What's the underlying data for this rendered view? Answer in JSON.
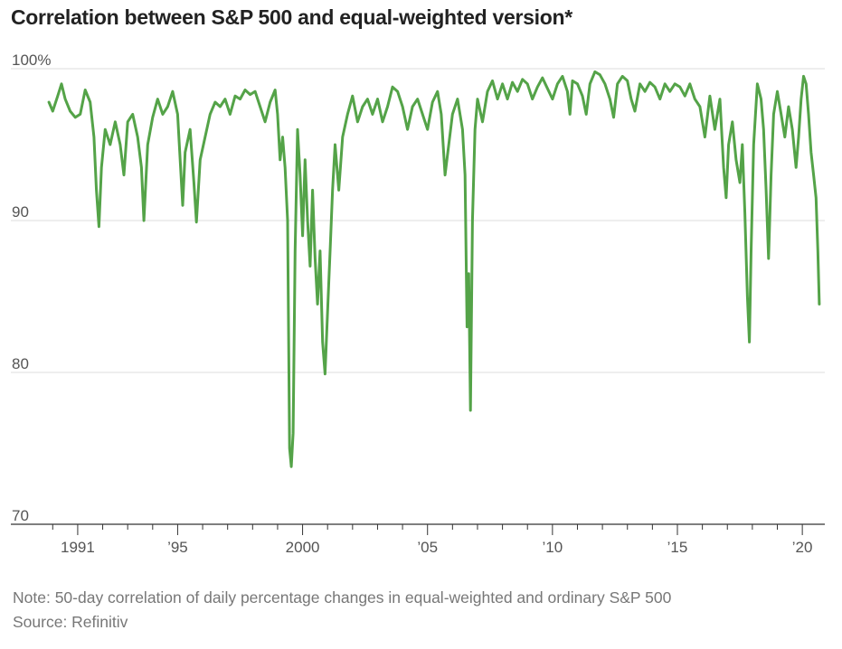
{
  "title": "Correlation between S&P 500 and equal-weighted version*",
  "note": "Note: 50-day correlation of daily percentage changes in equal-weighted and ordinary S&P 500",
  "source": "Source: Refinitiv",
  "colors": {
    "line": "#54a348",
    "grid": "#dddddd",
    "axis": "#333333"
  },
  "chart_data": {
    "type": "line",
    "title": "Correlation between S&P 500 and equal-weighted version*",
    "xlabel": "",
    "ylabel": "",
    "ylim": [
      70,
      100
    ],
    "xlim": [
      1989.7,
      2020.9
    ],
    "grid": true,
    "y_ticks": [
      {
        "value": 100,
        "label": "100%"
      },
      {
        "value": 90,
        "label": "90"
      },
      {
        "value": 80,
        "label": "80"
      },
      {
        "value": 70,
        "label": "70"
      }
    ],
    "x_ticks_labeled": [
      {
        "value": 1991,
        "label": "1991"
      },
      {
        "value": 1995,
        "label": "’95"
      },
      {
        "value": 2000,
        "label": "2000"
      },
      {
        "value": 2005,
        "label": "’05"
      },
      {
        "value": 2010,
        "label": "’10"
      },
      {
        "value": 2015,
        "label": "’15"
      },
      {
        "value": 2020,
        "label": "’20"
      }
    ],
    "x_ticks_minor": [
      1990,
      1992,
      1993,
      1994,
      1996,
      1997,
      1998,
      1999,
      2001,
      2002,
      2003,
      2004,
      2006,
      2007,
      2008,
      2009,
      2011,
      2012,
      2013,
      2014,
      2016,
      2017,
      2018,
      2019
    ],
    "series": [
      {
        "points": [
          [
            1989.85,
            97.8
          ],
          [
            1990.0,
            97.2
          ],
          [
            1990.2,
            98.2
          ],
          [
            1990.35,
            99.0
          ],
          [
            1990.5,
            98.0
          ],
          [
            1990.7,
            97.2
          ],
          [
            1990.9,
            96.8
          ],
          [
            1991.1,
            97.0
          ],
          [
            1991.3,
            98.6
          ],
          [
            1991.5,
            97.8
          ],
          [
            1991.65,
            95.5
          ],
          [
            1991.75,
            92.0
          ],
          [
            1991.85,
            89.6
          ],
          [
            1991.95,
            93.5
          ],
          [
            1992.1,
            96.0
          ],
          [
            1992.3,
            95.0
          ],
          [
            1992.5,
            96.5
          ],
          [
            1992.7,
            95.0
          ],
          [
            1992.85,
            93.0
          ],
          [
            1993.0,
            96.5
          ],
          [
            1993.2,
            97.0
          ],
          [
            1993.4,
            95.5
          ],
          [
            1993.55,
            93.5
          ],
          [
            1993.65,
            90.0
          ],
          [
            1993.8,
            95.0
          ],
          [
            1994.0,
            96.8
          ],
          [
            1994.2,
            98.0
          ],
          [
            1994.4,
            97.0
          ],
          [
            1994.6,
            97.5
          ],
          [
            1994.8,
            98.5
          ],
          [
            1995.0,
            97.0
          ],
          [
            1995.1,
            94.0
          ],
          [
            1995.2,
            91.0
          ],
          [
            1995.3,
            94.5
          ],
          [
            1995.5,
            96.0
          ],
          [
            1995.65,
            92.5
          ],
          [
            1995.75,
            89.9
          ],
          [
            1995.9,
            94.0
          ],
          [
            1996.1,
            95.5
          ],
          [
            1996.3,
            97.0
          ],
          [
            1996.5,
            97.8
          ],
          [
            1996.7,
            97.5
          ],
          [
            1996.9,
            98.0
          ],
          [
            1997.1,
            97.0
          ],
          [
            1997.3,
            98.2
          ],
          [
            1997.5,
            98.0
          ],
          [
            1997.7,
            98.6
          ],
          [
            1997.9,
            98.3
          ],
          [
            1998.1,
            98.5
          ],
          [
            1998.3,
            97.5
          ],
          [
            1998.5,
            96.5
          ],
          [
            1998.7,
            97.8
          ],
          [
            1998.9,
            98.6
          ],
          [
            1999.0,
            97.0
          ],
          [
            1999.1,
            94.0
          ],
          [
            1999.2,
            95.5
          ],
          [
            1999.3,
            93.5
          ],
          [
            1999.4,
            90.0
          ],
          [
            1999.48,
            75.0
          ],
          [
            1999.55,
            73.8
          ],
          [
            1999.62,
            76.0
          ],
          [
            1999.7,
            88.0
          ],
          [
            1999.8,
            96.0
          ],
          [
            1999.9,
            93.0
          ],
          [
            2000.0,
            89.0
          ],
          [
            2000.1,
            94.0
          ],
          [
            2000.2,
            90.0
          ],
          [
            2000.3,
            87.0
          ],
          [
            2000.4,
            92.0
          ],
          [
            2000.5,
            87.5
          ],
          [
            2000.6,
            84.5
          ],
          [
            2000.7,
            88.0
          ],
          [
            2000.8,
            82.0
          ],
          [
            2000.9,
            79.9
          ],
          [
            2001.0,
            84.0
          ],
          [
            2001.1,
            88.0
          ],
          [
            2001.2,
            92.0
          ],
          [
            2001.3,
            95.0
          ],
          [
            2001.45,
            92.0
          ],
          [
            2001.6,
            95.5
          ],
          [
            2001.8,
            97.0
          ],
          [
            2002.0,
            98.2
          ],
          [
            2002.2,
            96.5
          ],
          [
            2002.4,
            97.5
          ],
          [
            2002.6,
            98.0
          ],
          [
            2002.8,
            97.0
          ],
          [
            2003.0,
            98.0
          ],
          [
            2003.2,
            96.5
          ],
          [
            2003.4,
            97.5
          ],
          [
            2003.6,
            98.8
          ],
          [
            2003.8,
            98.5
          ],
          [
            2004.0,
            97.5
          ],
          [
            2004.2,
            96.0
          ],
          [
            2004.4,
            97.5
          ],
          [
            2004.6,
            98.0
          ],
          [
            2004.8,
            97.0
          ],
          [
            2005.0,
            96.0
          ],
          [
            2005.2,
            97.8
          ],
          [
            2005.4,
            98.5
          ],
          [
            2005.55,
            97.0
          ],
          [
            2005.7,
            93.0
          ],
          [
            2005.85,
            95.0
          ],
          [
            2006.0,
            97.0
          ],
          [
            2006.2,
            98.0
          ],
          [
            2006.4,
            96.0
          ],
          [
            2006.5,
            93.0
          ],
          [
            2006.58,
            83.0
          ],
          [
            2006.65,
            86.5
          ],
          [
            2006.72,
            77.5
          ],
          [
            2006.8,
            90.0
          ],
          [
            2006.9,
            96.0
          ],
          [
            2007.0,
            98.0
          ],
          [
            2007.2,
            96.5
          ],
          [
            2007.4,
            98.5
          ],
          [
            2007.6,
            99.2
          ],
          [
            2007.8,
            98.0
          ],
          [
            2008.0,
            99.0
          ],
          [
            2008.2,
            98.0
          ],
          [
            2008.4,
            99.1
          ],
          [
            2008.6,
            98.5
          ],
          [
            2008.8,
            99.3
          ],
          [
            2009.0,
            99.0
          ],
          [
            2009.2,
            98.0
          ],
          [
            2009.4,
            98.8
          ],
          [
            2009.6,
            99.4
          ],
          [
            2009.8,
            98.7
          ],
          [
            2010.0,
            98.0
          ],
          [
            2010.2,
            99.0
          ],
          [
            2010.4,
            99.5
          ],
          [
            2010.6,
            98.5
          ],
          [
            2010.7,
            97.0
          ],
          [
            2010.8,
            99.2
          ],
          [
            2011.0,
            99.0
          ],
          [
            2011.2,
            98.2
          ],
          [
            2011.35,
            97.0
          ],
          [
            2011.5,
            99.0
          ],
          [
            2011.7,
            99.8
          ],
          [
            2011.9,
            99.6
          ],
          [
            2012.1,
            99.0
          ],
          [
            2012.3,
            98.0
          ],
          [
            2012.45,
            96.8
          ],
          [
            2012.6,
            99.0
          ],
          [
            2012.8,
            99.5
          ],
          [
            2013.0,
            99.2
          ],
          [
            2013.15,
            98.0
          ],
          [
            2013.3,
            97.2
          ],
          [
            2013.5,
            99.0
          ],
          [
            2013.7,
            98.5
          ],
          [
            2013.9,
            99.1
          ],
          [
            2014.1,
            98.8
          ],
          [
            2014.3,
            98.0
          ],
          [
            2014.5,
            99.0
          ],
          [
            2014.7,
            98.5
          ],
          [
            2014.9,
            99.0
          ],
          [
            2015.1,
            98.8
          ],
          [
            2015.3,
            98.2
          ],
          [
            2015.5,
            99.0
          ],
          [
            2015.7,
            98.0
          ],
          [
            2015.9,
            97.5
          ],
          [
            2016.1,
            95.5
          ],
          [
            2016.3,
            98.2
          ],
          [
            2016.5,
            96.0
          ],
          [
            2016.7,
            98.0
          ],
          [
            2016.85,
            93.5
          ],
          [
            2016.95,
            91.5
          ],
          [
            2017.05,
            95.0
          ],
          [
            2017.2,
            96.5
          ],
          [
            2017.35,
            94.0
          ],
          [
            2017.5,
            92.5
          ],
          [
            2017.6,
            95.0
          ],
          [
            2017.7,
            90.5
          ],
          [
            2017.8,
            85.0
          ],
          [
            2017.88,
            82.0
          ],
          [
            2017.95,
            88.0
          ],
          [
            2018.05,
            95.0
          ],
          [
            2018.2,
            99.0
          ],
          [
            2018.35,
            98.0
          ],
          [
            2018.45,
            96.0
          ],
          [
            2018.55,
            92.0
          ],
          [
            2018.65,
            87.5
          ],
          [
            2018.75,
            93.0
          ],
          [
            2018.85,
            97.0
          ],
          [
            2019.0,
            98.5
          ],
          [
            2019.15,
            97.0
          ],
          [
            2019.3,
            95.5
          ],
          [
            2019.45,
            97.5
          ],
          [
            2019.6,
            96.0
          ],
          [
            2019.75,
            93.5
          ],
          [
            2019.85,
            95.5
          ],
          [
            2019.95,
            98.0
          ],
          [
            2020.05,
            99.5
          ],
          [
            2020.15,
            99.0
          ],
          [
            2020.25,
            97.0
          ],
          [
            2020.35,
            94.5
          ],
          [
            2020.45,
            93.0
          ],
          [
            2020.55,
            91.5
          ],
          [
            2020.62,
            88.0
          ],
          [
            2020.68,
            84.5
          ]
        ]
      }
    ]
  }
}
